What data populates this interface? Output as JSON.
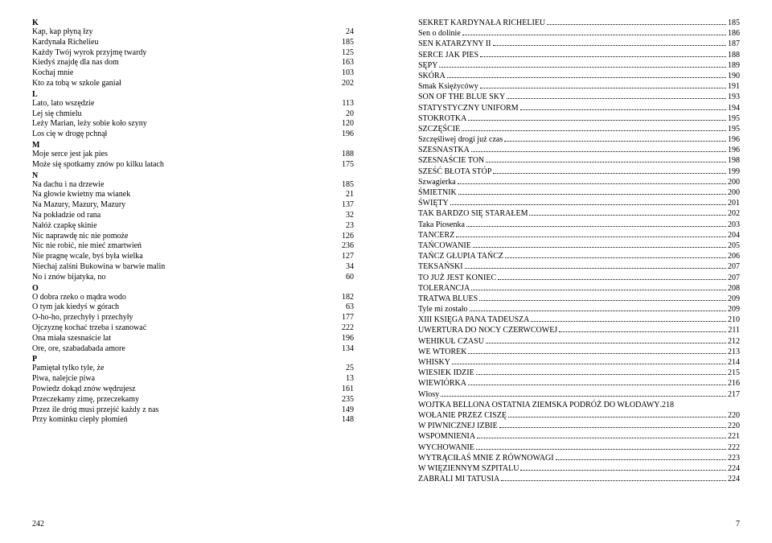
{
  "meta": {
    "background_color": "#ffffff",
    "text_color": "#000000",
    "font_family": "Times New Roman",
    "base_font_size_pt": 10
  },
  "left_page": {
    "page_number": "242",
    "sections": [
      {
        "letter": "K",
        "items": [
          {
            "title": "Kap, kap płyną łzy",
            "page": "24"
          },
          {
            "title": "Kardynała Richelieu",
            "page": "185"
          },
          {
            "title": "Każdy Twój wyrok przyjmę twardy",
            "page": "125"
          },
          {
            "title": "Kiedyś znajdę dla nas dom",
            "page": "163"
          },
          {
            "title": "Kochaj mnie",
            "page": "103"
          },
          {
            "title": "Kto za tobą w szkole ganiał",
            "page": "202"
          }
        ]
      },
      {
        "letter": "L",
        "items": [
          {
            "title": "Lato, lato wszędzie",
            "page": "113"
          },
          {
            "title": "Lej się chmielu",
            "page": "20"
          },
          {
            "title": "Leży Marian, leży sobie koło szyny",
            "page": "120"
          },
          {
            "title": "Los cię w drogę pchnął",
            "page": "196"
          }
        ]
      },
      {
        "letter": "M",
        "items": [
          {
            "title": "Moje serce jest jak pies",
            "page": "188"
          },
          {
            "title": "Może się spotkamy znów po kilku latach",
            "page": "175"
          }
        ]
      },
      {
        "letter": "N",
        "items": [
          {
            "title": "Na dachu i na drzewie",
            "page": "185"
          },
          {
            "title": "Na głowie kwietny ma wianek",
            "page": "21"
          },
          {
            "title": "Na Mazury, Mazury, Mazury",
            "page": "137"
          },
          {
            "title": "Na pokładzie od rana",
            "page": "32"
          },
          {
            "title": "Nałóż czapkę skinie",
            "page": "23"
          },
          {
            "title": "Nic naprawdę nic nie pomoże",
            "page": "126"
          },
          {
            "title": "Nic nie robić, nie mieć zmartwień",
            "page": "236"
          },
          {
            "title": "Nie pragnę wcale, byś była wielka",
            "page": "127"
          },
          {
            "title": "Niechaj zalśni Bukowina w barwie malin",
            "page": "34"
          },
          {
            "title": "No i znów bijatyka, no",
            "page": "60"
          }
        ]
      },
      {
        "letter": "O",
        "items": [
          {
            "title": "O dobra rzeko o mądra wodo",
            "page": "182"
          },
          {
            "title": "O tym jak kiedyś w górach",
            "page": "63"
          },
          {
            "title": "O-ho-ho, przechyły i przechyły",
            "page": "177"
          },
          {
            "title": "Ojczyznę kochać trzeba i szanować",
            "page": "222"
          },
          {
            "title": "Ona miała szesnaście lat",
            "page": "196"
          },
          {
            "title": "Ore, ore, szabadabada amore",
            "page": "134"
          }
        ]
      },
      {
        "letter": "P",
        "items": [
          {
            "title": "Pamiętał tylko tyle, że",
            "page": "25"
          },
          {
            "title": "Piwa, nalejcie piwa",
            "page": "13"
          },
          {
            "title": "Powiedz dokąd znów wędrujesz",
            "page": "161"
          },
          {
            "title": "Przeczekamy zimę, przeczekamy",
            "page": "235"
          },
          {
            "title": "Przez ile dróg musi przejść każdy z nas",
            "page": "149"
          },
          {
            "title": "Przy kominku ciepły płomień",
            "page": "148"
          }
        ]
      }
    ]
  },
  "right_page": {
    "page_number": "7",
    "items": [
      {
        "title": "SEKRET KARDYNAŁA RICHELIEU",
        "page": "185"
      },
      {
        "title": "Sen o dolinie",
        "page": "186"
      },
      {
        "title": "SEN KATARZYNY II",
        "page": "187"
      },
      {
        "title": "SERCE JAK PIES",
        "page": "188"
      },
      {
        "title": "SĘPY",
        "page": "189"
      },
      {
        "title": "SKÓRA",
        "page": "190"
      },
      {
        "title": " Smak Księżycówy",
        "page": "191"
      },
      {
        "title": "SON OF THE BLUE SKY",
        "page": "193"
      },
      {
        "title": "STATYSTYCZNY UNIFORM",
        "page": "194"
      },
      {
        "title": "STOKROTKA",
        "page": "195"
      },
      {
        "title": "SZCZĘŚCIE",
        "page": "195"
      },
      {
        "title": "Szczęśliwej drogi już czas",
        "page": "196"
      },
      {
        "title": "SZESNASTKA",
        "page": "196"
      },
      {
        "title": "SZESNAŚCIE TON",
        "page": "198"
      },
      {
        "title": "SZEŚĆ BŁOTA STÓP",
        "page": "199"
      },
      {
        "title": "Szwagierka",
        "page": "200"
      },
      {
        "title": "ŚMIETNIK",
        "page": "200"
      },
      {
        "title": "ŚWIĘTY",
        "page": "201"
      },
      {
        "title": "TAK BARDZO SIĘ STARAŁEM",
        "page": "202"
      },
      {
        "title": "Taka Piosenka",
        "page": "203"
      },
      {
        "title": "TANCERZ",
        "page": "204"
      },
      {
        "title": "TAŃCOWANIE",
        "page": "205"
      },
      {
        "title": "TAŃCZ GŁUPIA TAŃCZ",
        "page": "206"
      },
      {
        "title": "TEKSAŃSKI",
        "page": "207"
      },
      {
        "title": "TO JUŻ JEST KONIEC",
        "page": "207"
      },
      {
        "title": "TOLERANCJA",
        "page": "208"
      },
      {
        "title": "TRATWA BLUES",
        "page": "209"
      },
      {
        "title": "Tyle mi zostało",
        "page": "209"
      },
      {
        "title": "XIII KSIĘGA PANA TADEUSZA",
        "page": "210"
      },
      {
        "title": "UWERTURA DO NOCY CZERWCOWEJ",
        "page": "211"
      },
      {
        "title": "WEHIKUŁ CZASU",
        "page": "212"
      },
      {
        "title": "WE WTOREK",
        "page": "213"
      },
      {
        "title": "WHISKY",
        "page": "214"
      },
      {
        "title": "WIESIEK IDZIE",
        "page": "215"
      },
      {
        "title": "WIEWIÓRKA",
        "page": "216"
      },
      {
        "title": " Włosy",
        "page": "217"
      },
      {
        "title": "WOJTKA BELLONA OSTATNIA ZIEMSKA PODRÓŻ DO WŁODAWY",
        "page": ".218",
        "nodots": true
      },
      {
        "title": "WOŁANIE PRZEZ CISZĘ",
        "page": "220"
      },
      {
        "title": "W PIWNICZNEJ IZBIE",
        "page": "220"
      },
      {
        "title": "WSPOMNIENIA",
        "page": "221"
      },
      {
        "title": "WYCHOWANIE",
        "page": "222"
      },
      {
        "title": "WYTRĄCIŁAŚ MNIE Z RÓWNOWAGI",
        "page": "223"
      },
      {
        "title": "W WIĘZIENNYM SZPITALU",
        "page": "224"
      },
      {
        "title": "ZABRALI MI TATUSIA",
        "page": "224"
      }
    ]
  }
}
